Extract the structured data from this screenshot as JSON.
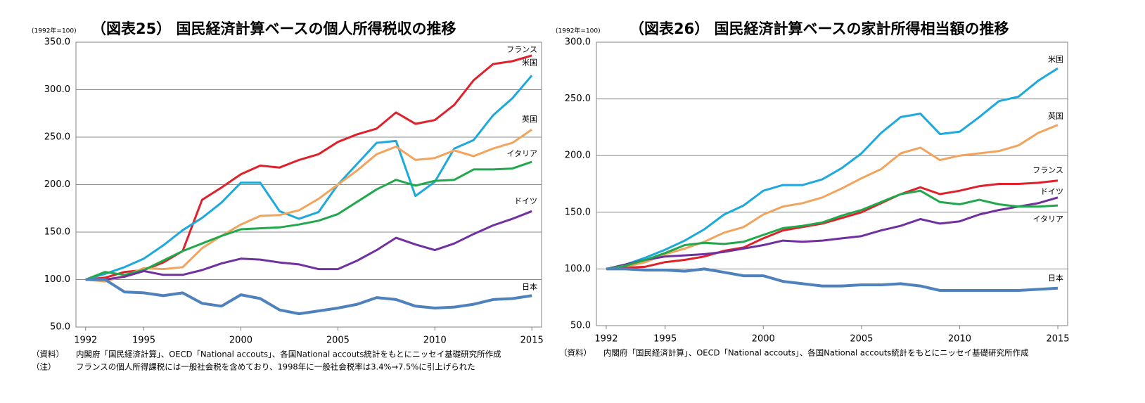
{
  "chart_data": [
    {
      "type": "line",
      "title": "（図表25） 国民経済計算ベースの個人所得税収の推移",
      "unit_label": "(1992年=100)",
      "x": [
        1992,
        1993,
        1994,
        1995,
        1996,
        1997,
        1998,
        1999,
        2000,
        2001,
        2002,
        2003,
        2004,
        2005,
        2006,
        2007,
        2008,
        2009,
        2010,
        2011,
        2012,
        2013,
        2014,
        2015
      ],
      "xlim": [
        1991.5,
        2015.5
      ],
      "xticks": [
        1992,
        1995,
        2000,
        2005,
        2010,
        2015
      ],
      "ylim": [
        50,
        350
      ],
      "yticks": [
        {
          "value": 50,
          "label": "50.0"
        },
        {
          "value": 100,
          "label": "100.0"
        },
        {
          "value": 150,
          "label": "150.0"
        },
        {
          "value": 200,
          "label": "200.0"
        },
        {
          "value": 250,
          "label": "250.0"
        },
        {
          "value": 300,
          "label": "300.0"
        },
        {
          "value": 350,
          "label": "350.0"
        }
      ],
      "grid": true,
      "series": [
        {
          "name": "フランス",
          "color": "#e0202a",
          "values": [
            100,
            102,
            108,
            110,
            118,
            130,
            184,
            197,
            211,
            220,
            218,
            226,
            232,
            245,
            253,
            259,
            276,
            264,
            268,
            284,
            310,
            327,
            330,
            336
          ]
        },
        {
          "name": "米国",
          "color": "#1ea9dd",
          "values": [
            100,
            106,
            113,
            122,
            136,
            152,
            165,
            181,
            202,
            202,
            172,
            164,
            171,
            200,
            222,
            244,
            246,
            188,
            203,
            238,
            247,
            273,
            291,
            315
          ]
        },
        {
          "name": "英国",
          "color": "#f2a45e",
          "values": [
            100,
            98,
            104,
            112,
            111,
            113,
            133,
            146,
            158,
            167,
            168,
            173,
            185,
            200,
            215,
            232,
            240,
            226,
            228,
            236,
            230,
            238,
            244,
            258
          ]
        },
        {
          "name": "イタリア",
          "color": "#21a84c",
          "values": [
            100,
            108,
            105,
            110,
            120,
            130,
            138,
            146,
            153,
            154,
            155,
            158,
            162,
            169,
            182,
            195,
            205,
            199,
            204,
            205,
            216,
            216,
            217,
            224
          ]
        },
        {
          "name": "ドイツ",
          "color": "#7030a0",
          "values": [
            100,
            100,
            103,
            109,
            105,
            105,
            110,
            117,
            122,
            121,
            118,
            116,
            111,
            111,
            120,
            131,
            144,
            137,
            131,
            138,
            148,
            157,
            164,
            172
          ]
        },
        {
          "name": "日本",
          "color": "#4f81bd",
          "values": [
            100,
            100,
            87,
            86,
            83,
            86,
            75,
            72,
            84,
            80,
            68,
            64,
            67,
            70,
            74,
            81,
            79,
            72,
            70,
            71,
            74,
            79,
            80,
            83
          ]
        }
      ],
      "source": {
        "label": "（資料）",
        "text": "内閣府「国民経済計算」、OECD「National accouts」、各国National accouts統計をもとにニッセイ基礎研究所作成"
      },
      "note": {
        "label": "（注）",
        "text": "フランスの個人所得課税には一般社会税を含めており、1998年に一般社会税率は3.4%→7.5%に引上げられた"
      }
    },
    {
      "type": "line",
      "title": "（図表26） 国民経済計算ベースの家計所得相当額の推移",
      "unit_label": "(1992年=100)",
      "x": [
        1992,
        1993,
        1994,
        1995,
        1996,
        1997,
        1998,
        1999,
        2000,
        2001,
        2002,
        2003,
        2004,
        2005,
        2006,
        2007,
        2008,
        2009,
        2010,
        2011,
        2012,
        2013,
        2014,
        2015
      ],
      "xlim": [
        1991.5,
        2015.5
      ],
      "xticks": [
        1992,
        1995,
        2000,
        2005,
        2010,
        2015
      ],
      "ylim": [
        50,
        300
      ],
      "yticks": [
        {
          "value": 50,
          "label": "50.0"
        },
        {
          "value": 100,
          "label": "100.0"
        },
        {
          "value": 150,
          "label": "150.0"
        },
        {
          "value": 200,
          "label": "200.0"
        },
        {
          "value": 250,
          "label": "250.0"
        },
        {
          "value": 300,
          "label": "300.0"
        }
      ],
      "grid": true,
      "series": [
        {
          "name": "米国",
          "color": "#1ea9dd",
          "values": [
            100,
            104,
            110,
            117,
            125,
            135,
            148,
            156,
            169,
            174,
            174,
            179,
            189,
            202,
            220,
            234,
            237,
            219,
            221,
            234,
            248,
            252,
            266,
            277
          ]
        },
        {
          "name": "英国",
          "color": "#f2a45e",
          "values": [
            100,
            102,
            106,
            113,
            118,
            124,
            132,
            137,
            148,
            155,
            158,
            163,
            171,
            180,
            188,
            202,
            207,
            196,
            200,
            202,
            204,
            209,
            220,
            227
          ]
        },
        {
          "name": "フランス",
          "color": "#e0202a",
          "values": [
            100,
            101,
            102,
            106,
            108,
            111,
            116,
            119,
            127,
            134,
            137,
            140,
            145,
            150,
            158,
            166,
            172,
            166,
            169,
            173,
            175,
            175,
            176,
            178
          ]
        },
        {
          "name": "ドイツ",
          "color": "#7030a0",
          "values": [
            100,
            104,
            108,
            111,
            112,
            113,
            115,
            118,
            121,
            125,
            124,
            125,
            127,
            129,
            134,
            138,
            144,
            140,
            142,
            148,
            152,
            155,
            158,
            163
          ]
        },
        {
          "name": "イタリア",
          "color": "#21a84c",
          "values": [
            100,
            103,
            108,
            114,
            121,
            123,
            122,
            124,
            130,
            136,
            138,
            141,
            147,
            152,
            159,
            166,
            169,
            159,
            157,
            161,
            157,
            155,
            155,
            156
          ]
        },
        {
          "name": "日本",
          "color": "#4f81bd",
          "values": [
            100,
            100,
            99,
            99,
            98,
            100,
            97,
            94,
            94,
            89,
            87,
            85,
            85,
            86,
            86,
            87,
            85,
            81,
            81,
            81,
            81,
            81,
            82,
            83
          ]
        }
      ],
      "source": {
        "label": "（資料）",
        "text": "内閣府「国民経済計算」、OECD「National accouts」、各国National accouts統計をもとにニッセイ基礎研究所作成"
      }
    }
  ]
}
